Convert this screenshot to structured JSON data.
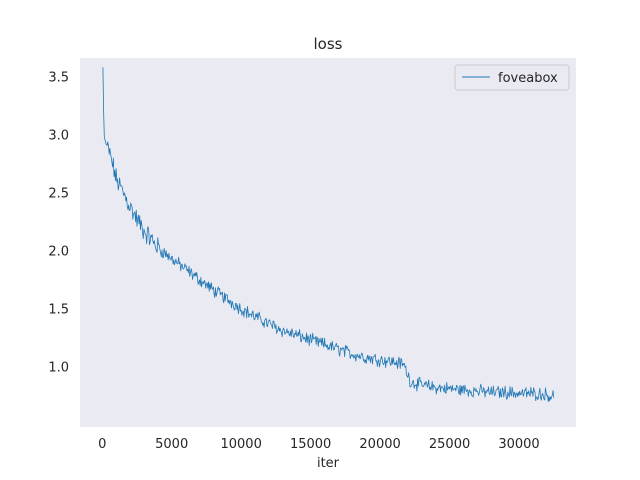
{
  "chart_data": {
    "type": "line",
    "title": "loss",
    "xlabel": "iter",
    "ylabel": "",
    "xlim": [
      -1600,
      34100
    ],
    "ylim": [
      0.48,
      3.66
    ],
    "xticks": [
      0,
      5000,
      10000,
      15000,
      20000,
      25000,
      30000
    ],
    "xtick_labels": [
      "0",
      "5000",
      "10000",
      "15000",
      "20000",
      "25000",
      "30000"
    ],
    "yticks": [
      1.0,
      1.5,
      2.0,
      2.5,
      3.0,
      3.5
    ],
    "ytick_labels": [
      "1.0",
      "1.5",
      "2.0",
      "2.5",
      "3.0",
      "3.5"
    ],
    "grid": false,
    "background": "#eaeaf2",
    "legend_position": "top-right",
    "series": [
      {
        "name": "foveabox",
        "color": "#1f77b4",
        "x_start": 50,
        "x_step": 50,
        "anchors_x": [
          50,
          100,
          150,
          250,
          500,
          800,
          1000,
          1300,
          2000,
          2500,
          3000,
          4000,
          5000,
          6000,
          7000,
          8000,
          9000,
          10000,
          11000,
          12000,
          13000,
          14000,
          15000,
          16000,
          17000,
          18000,
          19000,
          20000,
          21000,
          21700,
          22200,
          23000,
          24000,
          25000,
          26000,
          27000,
          28000,
          29000,
          30000,
          31000,
          32000,
          32500
        ],
        "anchors_y": [
          3.58,
          3.2,
          2.98,
          2.93,
          2.85,
          2.72,
          2.62,
          2.55,
          2.38,
          2.27,
          2.17,
          2.03,
          1.93,
          1.84,
          1.75,
          1.66,
          1.58,
          1.5,
          1.43,
          1.37,
          1.31,
          1.27,
          1.23,
          1.19,
          1.15,
          1.11,
          1.08,
          1.06,
          1.04,
          1.02,
          0.87,
          0.84,
          0.82,
          0.81,
          0.8,
          0.79,
          0.78,
          0.78,
          0.77,
          0.77,
          0.76,
          0.74
        ],
        "noise_amplitude": 0.045
      }
    ]
  }
}
